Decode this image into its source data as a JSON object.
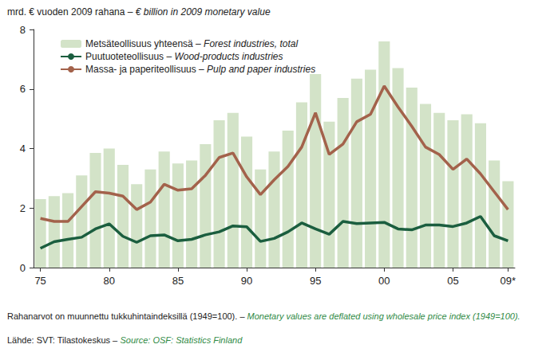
{
  "chart_data": {
    "type": "bar",
    "title": "mrd. € vuoden 2009 rahana – € billion in 2009 monetary value",
    "categories": [
      "75",
      null,
      null,
      null,
      null,
      "80",
      null,
      null,
      null,
      null,
      "85",
      null,
      null,
      null,
      null,
      "90",
      null,
      null,
      null,
      null,
      "95",
      null,
      null,
      null,
      null,
      "00",
      null,
      null,
      null,
      null,
      "05",
      null,
      null,
      null,
      "09*"
    ],
    "series": [
      {
        "name": "Metsäteollisuus yhteensä – Forest industries, total",
        "type": "bar",
        "color": "#d3e3c8",
        "values": [
          2.3,
          2.4,
          2.5,
          3.1,
          3.85,
          4.0,
          3.45,
          2.8,
          3.3,
          3.9,
          3.5,
          3.6,
          4.15,
          4.95,
          5.2,
          4.4,
          3.3,
          3.9,
          4.6,
          5.55,
          6.5,
          4.9,
          5.7,
          6.35,
          6.65,
          7.6,
          6.7,
          6.05,
          5.5,
          5.2,
          4.95,
          5.15,
          4.85,
          3.6,
          2.9
        ]
      },
      {
        "name": "Puutuoteteollisuus – Wood-products industries",
        "type": "line",
        "color": "#1b5e3f",
        "values": [
          0.65,
          0.87,
          0.95,
          1.02,
          1.3,
          1.47,
          1.05,
          0.85,
          1.07,
          1.1,
          0.9,
          0.95,
          1.1,
          1.2,
          1.4,
          1.37,
          0.88,
          0.98,
          1.2,
          1.5,
          1.3,
          1.12,
          1.55,
          1.48,
          1.5,
          1.52,
          1.3,
          1.27,
          1.43,
          1.43,
          1.38,
          1.5,
          1.72,
          1.07,
          0.9
        ]
      },
      {
        "name": "Massa- ja paperiteollisuus – Pulp and paper industries",
        "type": "line",
        "color": "#a3624b",
        "values": [
          1.65,
          1.55,
          1.55,
          2.05,
          2.55,
          2.5,
          2.4,
          1.95,
          2.2,
          2.8,
          2.6,
          2.65,
          3.1,
          3.7,
          3.85,
          3.05,
          2.45,
          2.95,
          3.4,
          4.05,
          5.2,
          3.8,
          4.15,
          4.9,
          5.15,
          6.1,
          5.4,
          4.75,
          4.05,
          3.8,
          3.3,
          3.65,
          3.15,
          2.55,
          1.95
        ]
      }
    ],
    "ylim": [
      0,
      8
    ],
    "yticks": [
      0,
      2,
      4,
      6,
      8
    ],
    "grid": false,
    "legend": "upper left",
    "annotations": [
      "Rahanarvot on muunnettu tukkuhintaindeksillä (1949=100). – Monetary values are deflated using wholesale price index (1949=100).",
      "Lähde: SVT: Tilastokeskus – Source: OSF: Statistics Finland"
    ]
  }
}
